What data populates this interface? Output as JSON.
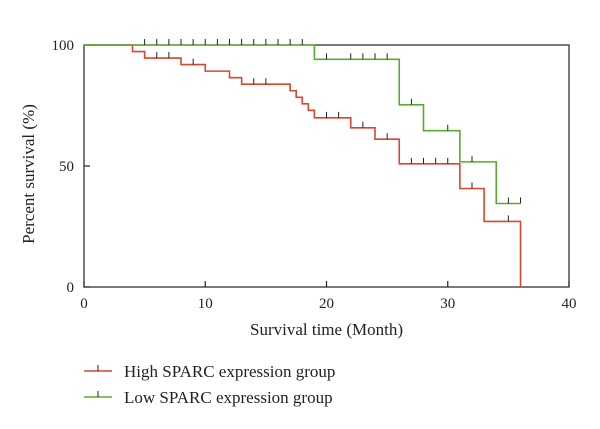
{
  "chart_data": {
    "type": "line",
    "subtype": "kaplan-meier step",
    "title": "",
    "xlabel": "Survival time (Month)",
    "ylabel": "Percent survival (%)",
    "xlim": [
      0,
      40
    ],
    "ylim": [
      0,
      100
    ],
    "x_ticks": [
      0,
      10,
      20,
      30,
      40
    ],
    "y_ticks": [
      0,
      50,
      100
    ],
    "grid": false,
    "legend_position": "bottom-left",
    "series": [
      {
        "name": "High SPARC expression group",
        "color": "#d9462b",
        "steps": [
          [
            0,
            100
          ],
          [
            4,
            97.3
          ],
          [
            5,
            94.6
          ],
          [
            8,
            91.9
          ],
          [
            10,
            89.2
          ],
          [
            12,
            86.5
          ],
          [
            13,
            83.8
          ],
          [
            17,
            81.1
          ],
          [
            17.5,
            78.4
          ],
          [
            18,
            75.7
          ],
          [
            18.5,
            73
          ],
          [
            19,
            69.9
          ],
          [
            22,
            65.8
          ],
          [
            24,
            61.1
          ],
          [
            26,
            50.9
          ],
          [
            31,
            40.7
          ],
          [
            33,
            27.1
          ],
          [
            36,
            0
          ]
        ],
        "censored": [
          [
            6,
            94.6
          ],
          [
            7,
            94.6
          ],
          [
            9,
            91.9
          ],
          [
            14,
            83.8
          ],
          [
            15,
            83.8
          ],
          [
            20,
            69.9
          ],
          [
            21,
            69.9
          ],
          [
            23,
            65.8
          ],
          [
            25,
            61.1
          ],
          [
            27,
            50.9
          ],
          [
            28,
            50.9
          ],
          [
            29,
            50.9
          ],
          [
            30,
            50.9
          ],
          [
            32,
            40.7
          ],
          [
            35,
            27.1
          ]
        ]
      },
      {
        "name": "Low SPARC expression group",
        "color": "#5aaa32",
        "steps": [
          [
            0,
            100
          ],
          [
            19,
            94.1
          ],
          [
            26,
            75.3
          ],
          [
            28,
            64.6
          ],
          [
            31,
            51.7
          ],
          [
            34,
            34.5
          ],
          [
            36,
            34.5
          ]
        ],
        "censored": [
          [
            5,
            100
          ],
          [
            6,
            100
          ],
          [
            7,
            100
          ],
          [
            8,
            100
          ],
          [
            9,
            100
          ],
          [
            10,
            100
          ],
          [
            11,
            100
          ],
          [
            12,
            100
          ],
          [
            13,
            100
          ],
          [
            14,
            100
          ],
          [
            15,
            100
          ],
          [
            16,
            100
          ],
          [
            17,
            100
          ],
          [
            18,
            100
          ],
          [
            20,
            94.1
          ],
          [
            22,
            94.1
          ],
          [
            23,
            94.1
          ],
          [
            24,
            94.1
          ],
          [
            25,
            94.1
          ],
          [
            27,
            75.3
          ],
          [
            30,
            64.6
          ],
          [
            32,
            51.7
          ],
          [
            35,
            34.5
          ],
          [
            36,
            34.5
          ]
        ]
      }
    ]
  }
}
